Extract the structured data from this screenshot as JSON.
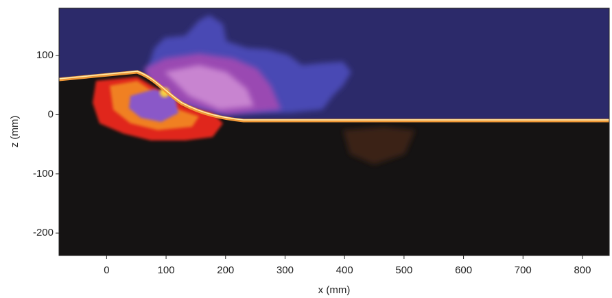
{
  "chart_data": {
    "type": "image",
    "xlabel": "x (mm)",
    "ylabel": "z (mm)",
    "xlim": [
      -80,
      845
    ],
    "ylim": [
      -238,
      180
    ],
    "xticks": [
      0,
      100,
      200,
      300,
      400,
      500,
      600,
      700,
      800
    ],
    "yticks": [
      -200,
      -100,
      0,
      100
    ]
  }
}
